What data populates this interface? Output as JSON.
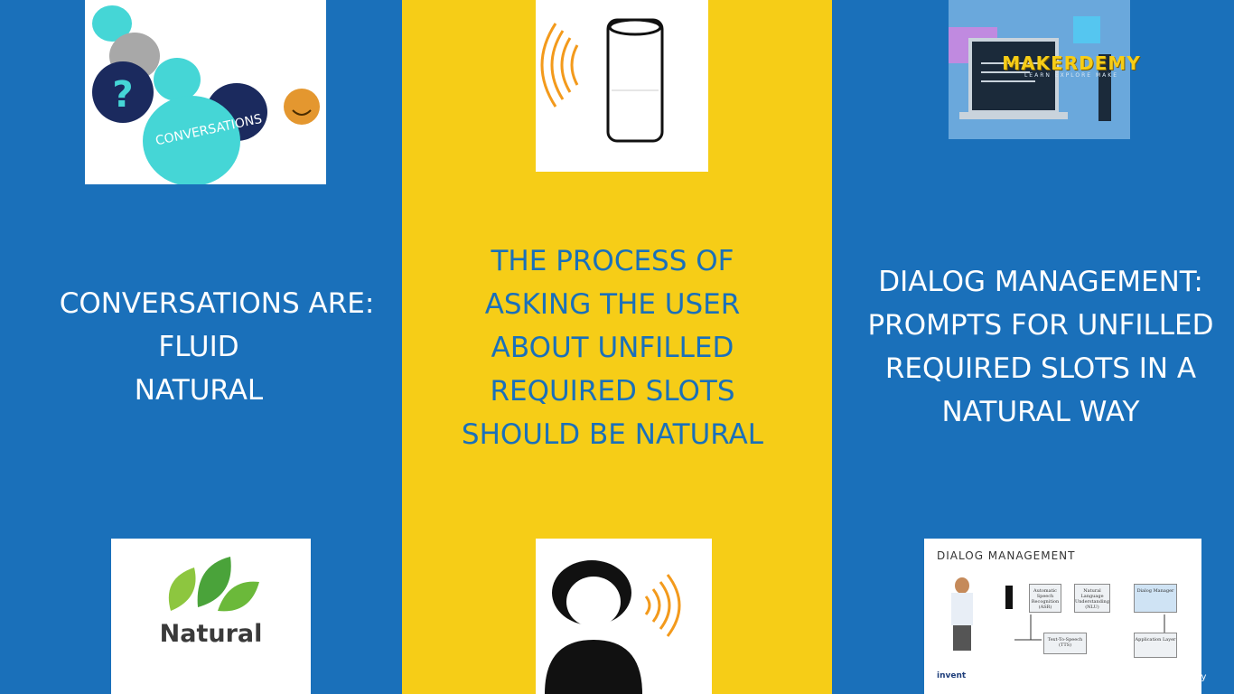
{
  "slide": {
    "left_text": [
      "CONVERSATIONS ARE:",
      "FLUID",
      "NATURAL"
    ],
    "middle_text": [
      "THE PROCESS OF",
      "ASKING THE USER",
      "ABOUT UNFILLED",
      "REQUIRED SLOTS",
      "SHOULD BE NATURAL"
    ],
    "right_text": [
      "DIALOG MANAGEMENT:",
      "PROMPTS FOR UNFILLED",
      "REQUIRED SLOTS IN A",
      "NATURAL WAY"
    ]
  },
  "images": {
    "conversations_word": "CONVERSATIONS",
    "natural_word": "Natural",
    "dialog_title": "DIALOG MANAGEMENT",
    "dialog_boxes": {
      "asr": "Automatic Speech Recognition (ASR)",
      "nlu": "Natural Language Understanding (NLU)",
      "dm": "Dialog Manager",
      "tts": "Text-To-Speech (TTS)",
      "app": "Application Layer"
    },
    "invent_label": "invent"
  },
  "watermark": {
    "brand": "MAKERDEMY",
    "tagline": "LEARN EXPLORE MAKE",
    "platform": "Udemy"
  },
  "colors": {
    "blue": "#1a70ba",
    "yellow": "#f6cd17",
    "orange": "#f39a1c"
  }
}
